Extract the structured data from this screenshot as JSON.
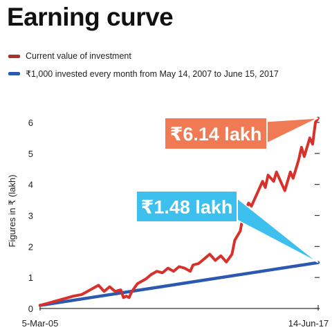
{
  "chart_data": {
    "type": "line",
    "title": "Earning curve",
    "ylabel": "Figures in ₹ (lakh)",
    "xlabel": "",
    "x_tick_labels": [
      "5-Mar-05",
      "14-Jun-17"
    ],
    "ylim": [
      0,
      6
    ],
    "yticks": [
      0,
      1,
      2,
      3,
      4,
      5,
      6
    ],
    "grid": false,
    "legend_position": "top-left",
    "series": [
      {
        "name": "Current value of investment",
        "color": "#d8302a",
        "x": [
          0,
          0.04,
          0.08,
          0.12,
          0.15,
          0.18,
          0.21,
          0.23,
          0.25,
          0.27,
          0.29,
          0.3,
          0.31,
          0.32,
          0.33,
          0.35,
          0.37,
          0.38,
          0.4,
          0.42,
          0.44,
          0.46,
          0.48,
          0.5,
          0.52,
          0.54,
          0.55,
          0.57,
          0.59,
          0.61,
          0.63,
          0.65,
          0.66,
          0.67,
          0.69,
          0.7,
          0.72,
          0.73,
          0.75,
          0.76,
          0.78,
          0.8,
          0.81,
          0.82,
          0.84,
          0.85,
          0.87,
          0.88,
          0.9,
          0.91,
          0.93,
          0.94,
          0.95,
          0.97,
          0.98,
          0.99,
          1.0
        ],
        "values": [
          0.1,
          0.2,
          0.3,
          0.4,
          0.45,
          0.6,
          0.75,
          0.55,
          0.7,
          0.55,
          0.6,
          0.35,
          0.4,
          0.35,
          0.55,
          0.8,
          0.9,
          0.95,
          1.1,
          1.2,
          1.15,
          1.3,
          1.2,
          1.35,
          1.3,
          1.2,
          1.4,
          1.45,
          1.6,
          1.75,
          1.55,
          1.7,
          1.6,
          1.5,
          1.75,
          2.2,
          2.5,
          3.0,
          3.4,
          3.3,
          3.7,
          4.1,
          3.9,
          4.3,
          4.1,
          4.4,
          4.0,
          3.8,
          4.4,
          4.2,
          4.8,
          5.2,
          4.9,
          5.5,
          5.3,
          6.0,
          6.14
        ]
      },
      {
        "name": "₹1,000 invested every month from May 14, 2007 to June 15, 2017",
        "color": "#2c59b0",
        "x": [
          0,
          1
        ],
        "values": [
          0.1,
          1.48
        ]
      }
    ],
    "annotations": [
      {
        "text": "₹6.14 lakh",
        "value": 6.14,
        "color": "#f07a53"
      },
      {
        "text": "₹1.48 lakh",
        "value": 1.48,
        "color": "#3ec0ee"
      }
    ]
  }
}
